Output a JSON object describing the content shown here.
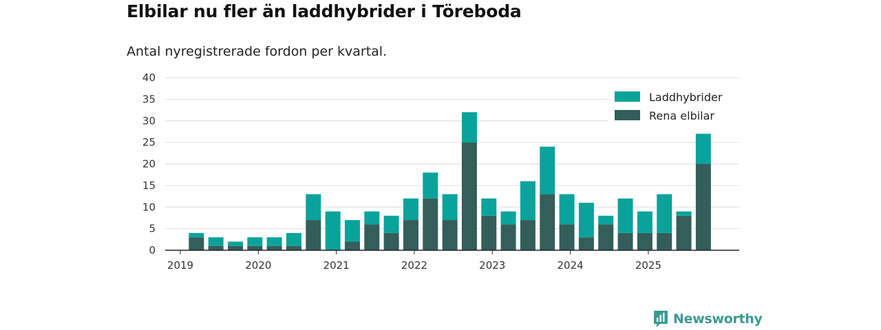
{
  "title": "Elbilar nu fler än laddhybrider i Töreboda",
  "subtitle": "Antal nyregistrerade fordon per kvartal.",
  "brand": "Newsworthy",
  "colors": {
    "hybrid": "#0aa39b",
    "ev": "#335e5a",
    "grid": "#dddddd",
    "axis": "#222222"
  },
  "chart_data": {
    "type": "bar",
    "stacked": true,
    "ylim": [
      0,
      40
    ],
    "yticks": [
      0,
      5,
      10,
      15,
      20,
      25,
      30,
      35,
      40
    ],
    "xticks": [
      "2019",
      "2020",
      "2021",
      "2022",
      "2023",
      "2024",
      "2025"
    ],
    "xlabel": "",
    "ylabel": "",
    "legend_position": "top-right",
    "categories": [
      "2019 Q2",
      "2019 Q3",
      "2019 Q4",
      "2020 Q1",
      "2020 Q2",
      "2020 Q3",
      "2020 Q4",
      "2021 Q1",
      "2021 Q2",
      "2021 Q3",
      "2021 Q4",
      "2022 Q1",
      "2022 Q2",
      "2022 Q3",
      "2022 Q4",
      "2023 Q1",
      "2023 Q2",
      "2023 Q3",
      "2023 Q4",
      "2024 Q1",
      "2024 Q2",
      "2024 Q3",
      "2024 Q4",
      "2025 Q1",
      "2025 Q2",
      "2025 Q3",
      "2025 Q4"
    ],
    "series": [
      {
        "name": "Rena elbilar",
        "values": [
          3,
          1,
          1,
          1,
          1,
          1,
          7,
          0,
          2,
          6,
          4,
          7,
          12,
          7,
          25,
          8,
          6,
          7,
          13,
          6,
          3,
          6,
          4,
          4,
          4,
          8,
          20
        ]
      },
      {
        "name": "Laddhybrider",
        "values": [
          1,
          2,
          1,
          2,
          2,
          3,
          6,
          9,
          5,
          3,
          4,
          5,
          6,
          6,
          7,
          4,
          3,
          9,
          11,
          7,
          8,
          2,
          8,
          5,
          9,
          1,
          7
        ]
      }
    ]
  }
}
